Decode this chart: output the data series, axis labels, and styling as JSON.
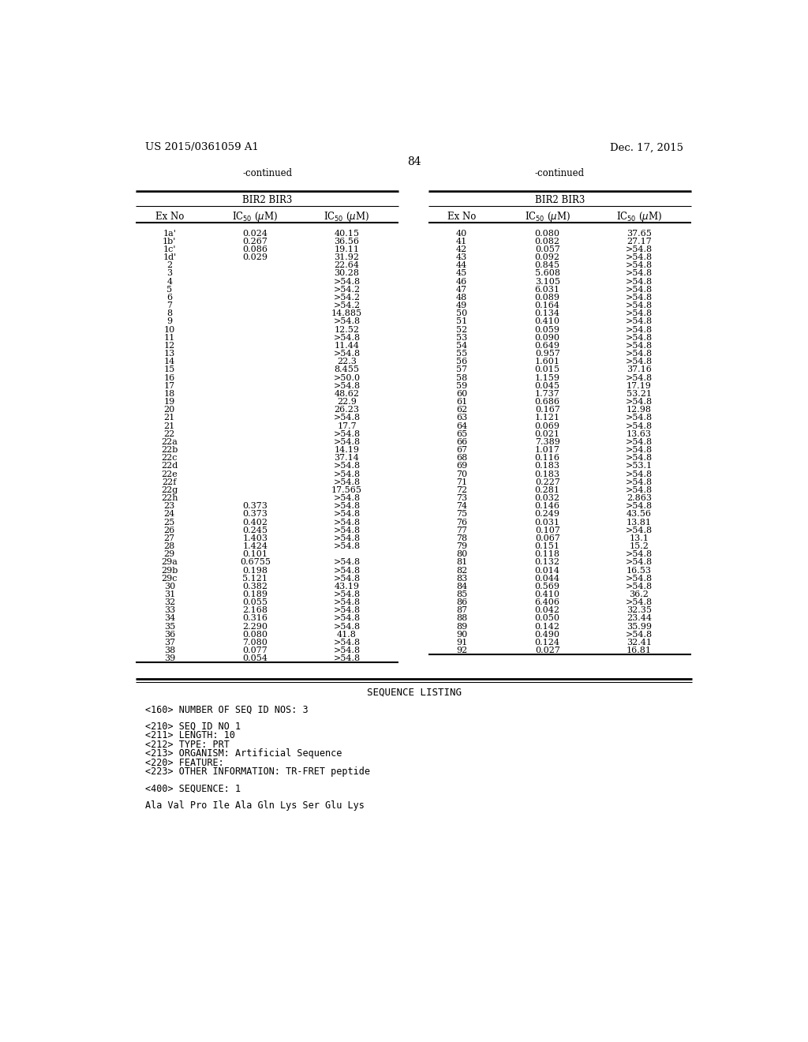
{
  "header_left": "US 2015/0361059 A1",
  "header_right": "Dec. 17, 2015",
  "page_number": "84",
  "background_color": "#ffffff",
  "left_table": {
    "continued_label": "-continued",
    "group_header": "BIR2 BIR3",
    "col_headers": [
      "Ex No",
      "IC50 (uM)",
      "IC50 (uM)"
    ],
    "rows": [
      [
        "1a'",
        "0.024",
        "40.15"
      ],
      [
        "1b'",
        "0.267",
        "36.56"
      ],
      [
        "1c'",
        "0.086",
        "19.11"
      ],
      [
        "1d'",
        "0.029",
        "31.92"
      ],
      [
        "2",
        "",
        "22.64"
      ],
      [
        "3",
        "",
        "30.28"
      ],
      [
        "4",
        "",
        ">54.8"
      ],
      [
        "5",
        "",
        ">54.2"
      ],
      [
        "6",
        "",
        ">54.2"
      ],
      [
        "7",
        "",
        ">54.2"
      ],
      [
        "8",
        "",
        "14.885"
      ],
      [
        "9",
        "",
        ">54.8"
      ],
      [
        "10",
        "",
        "12.52"
      ],
      [
        "11",
        "",
        ">54.8"
      ],
      [
        "12",
        "",
        "11.44"
      ],
      [
        "13",
        "",
        ">54.8"
      ],
      [
        "14",
        "",
        "22.3"
      ],
      [
        "15",
        "",
        "8.455"
      ],
      [
        "16",
        "",
        ">50.0"
      ],
      [
        "17",
        "",
        ">54.8"
      ],
      [
        "18",
        "",
        "48.62"
      ],
      [
        "19",
        "",
        "22.9"
      ],
      [
        "20",
        "",
        "26.23"
      ],
      [
        "21",
        "",
        ">54.8"
      ],
      [
        "21",
        "",
        "17.7"
      ],
      [
        "22",
        "",
        ">54.8"
      ],
      [
        "22a",
        "",
        ">54.8"
      ],
      [
        "22b",
        "",
        "14.19"
      ],
      [
        "22c",
        "",
        "37.14"
      ],
      [
        "22d",
        "",
        ">54.8"
      ],
      [
        "22e",
        "",
        ">54.8"
      ],
      [
        "22f",
        "",
        ">54.8"
      ],
      [
        "22g",
        "",
        "17.565"
      ],
      [
        "22h",
        "",
        ">54.8"
      ],
      [
        "23",
        "0.373",
        ">54.8"
      ],
      [
        "24",
        "0.373",
        ">54.8"
      ],
      [
        "25",
        "0.402",
        ">54.8"
      ],
      [
        "26",
        "0.245",
        ">54.8"
      ],
      [
        "27",
        "1.403",
        ">54.8"
      ],
      [
        "28",
        "1.424",
        ">54.8"
      ],
      [
        "29",
        "0.101",
        ""
      ],
      [
        "29a",
        "0.6755",
        ">54.8"
      ],
      [
        "29b",
        "0.198",
        ">54.8"
      ],
      [
        "29c",
        "5.121",
        ">54.8"
      ],
      [
        "30",
        "0.382",
        "43.19"
      ],
      [
        "31",
        "0.189",
        ">54.8"
      ],
      [
        "32",
        "0.055",
        ">54.8"
      ],
      [
        "33",
        "2.168",
        ">54.8"
      ],
      [
        "34",
        "0.316",
        ">54.8"
      ],
      [
        "35",
        "2.290",
        ">54.8"
      ],
      [
        "36",
        "0.080",
        "41.8"
      ],
      [
        "37",
        "7.080",
        ">54.8"
      ],
      [
        "38",
        "0.077",
        ">54.8"
      ],
      [
        "39",
        "0.054",
        ">54.8"
      ]
    ]
  },
  "right_table": {
    "continued_label": "-continued",
    "group_header": "BIR2 BIR3",
    "col_headers": [
      "Ex No",
      "IC50 (uM)",
      "IC50 (uM)"
    ],
    "rows": [
      [
        "40",
        "0.080",
        "37.65"
      ],
      [
        "41",
        "0.082",
        "27.17"
      ],
      [
        "42",
        "0.057",
        ">54.8"
      ],
      [
        "43",
        "0.092",
        ">54.8"
      ],
      [
        "44",
        "0.845",
        ">54.8"
      ],
      [
        "45",
        "5.608",
        ">54.8"
      ],
      [
        "46",
        "3.105",
        ">54.8"
      ],
      [
        "47",
        "6.031",
        ">54.8"
      ],
      [
        "48",
        "0.089",
        ">54.8"
      ],
      [
        "49",
        "0.164",
        ">54.8"
      ],
      [
        "50",
        "0.134",
        ">54.8"
      ],
      [
        "51",
        "0.410",
        ">54.8"
      ],
      [
        "52",
        "0.059",
        ">54.8"
      ],
      [
        "53",
        "0.090",
        ">54.8"
      ],
      [
        "54",
        "0.649",
        ">54.8"
      ],
      [
        "55",
        "0.957",
        ">54.8"
      ],
      [
        "56",
        "1.601",
        ">54.8"
      ],
      [
        "57",
        "0.015",
        "37.16"
      ],
      [
        "58",
        "1.159",
        ">54.8"
      ],
      [
        "59",
        "0.045",
        "17.19"
      ],
      [
        "60",
        "1.737",
        "53.21"
      ],
      [
        "61",
        "0.686",
        ">54.8"
      ],
      [
        "62",
        "0.167",
        "12.98"
      ],
      [
        "63",
        "1.121",
        ">54.8"
      ],
      [
        "64",
        "0.069",
        ">54.8"
      ],
      [
        "65",
        "0.021",
        "13.63"
      ],
      [
        "66",
        "7.389",
        ">54.8"
      ],
      [
        "67",
        "1.017",
        ">54.8"
      ],
      [
        "68",
        "0.116",
        ">54.8"
      ],
      [
        "69",
        "0.183",
        ">53.1"
      ],
      [
        "70",
        "0.183",
        ">54.8"
      ],
      [
        "71",
        "0.227",
        ">54.8"
      ],
      [
        "72",
        "0.281",
        ">54.8"
      ],
      [
        "73",
        "0.032",
        "2.863"
      ],
      [
        "74",
        "0.146",
        ">54.8"
      ],
      [
        "75",
        "0.249",
        "43.56"
      ],
      [
        "76",
        "0.031",
        "13.81"
      ],
      [
        "77",
        "0.107",
        ">54.8"
      ],
      [
        "78",
        "0.067",
        "13.1"
      ],
      [
        "79",
        "0.151",
        "15.2"
      ],
      [
        "80",
        "0.118",
        ">54.8"
      ],
      [
        "81",
        "0.132",
        ">54.8"
      ],
      [
        "82",
        "0.014",
        "16.53"
      ],
      [
        "83",
        "0.044",
        ">54.8"
      ],
      [
        "84",
        "0.569",
        ">54.8"
      ],
      [
        "85",
        "0.410",
        "36.2"
      ],
      [
        "86",
        "6.406",
        ">54.8"
      ],
      [
        "87",
        "0.042",
        "32.35"
      ],
      [
        "88",
        "0.050",
        "23.44"
      ],
      [
        "89",
        "0.142",
        "35.99"
      ],
      [
        "90",
        "0.490",
        ">54.8"
      ],
      [
        "91",
        "0.124",
        "32.41"
      ],
      [
        "92",
        "0.027",
        "16.81"
      ]
    ]
  },
  "sequence_section": {
    "title": "SEQUENCE LISTING",
    "lines": [
      "",
      "<160> NUMBER OF SEQ ID NOS: 3",
      "",
      "<210> SEQ ID NO 1",
      "<211> LENGTH: 10",
      "<212> TYPE: PRT",
      "<213> ORGANISM: Artificial Sequence",
      "<220> FEATURE:",
      "<223> OTHER INFORMATION: TR-FRET peptide",
      "",
      "<400> SEQUENCE: 1",
      "",
      "Ala Val Pro Ile Ala Gln Lys Ser Glu Lys"
    ]
  }
}
